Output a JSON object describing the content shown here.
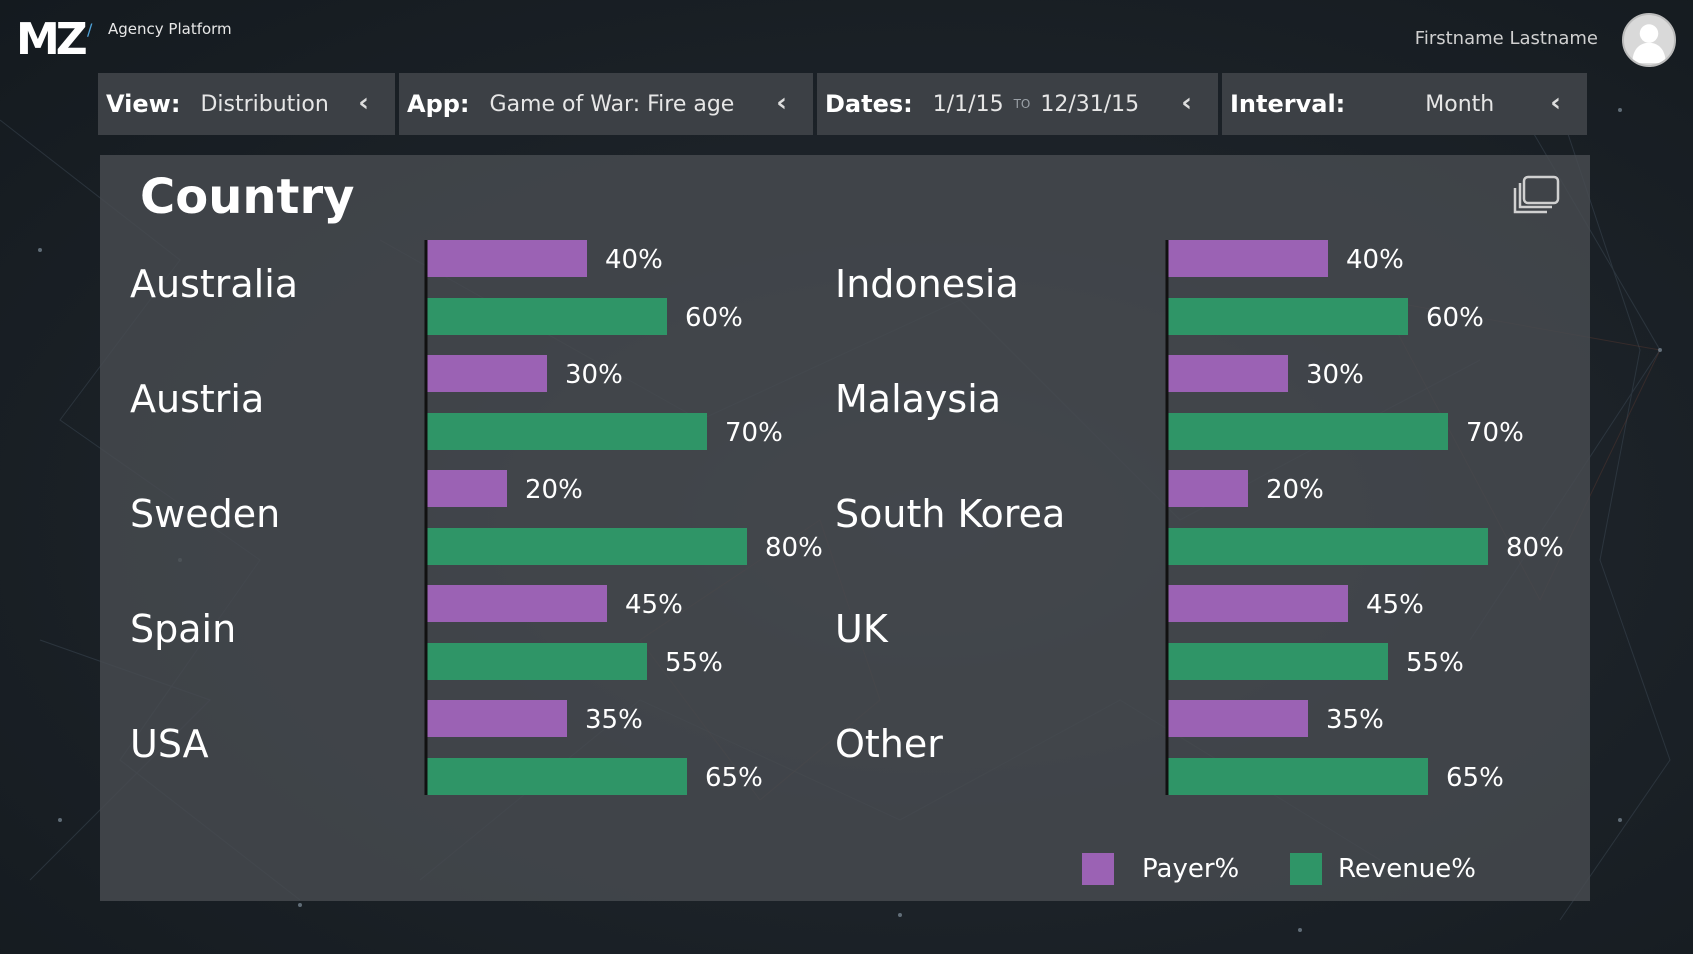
{
  "header": {
    "logo": "MZ",
    "separator": "/",
    "platform": "Agency Platform",
    "user_name": "Firstname Lastname",
    "avatar_icon": "user-avatar-icon"
  },
  "filters": {
    "view": {
      "label": "View:",
      "value": "Distribution"
    },
    "app": {
      "label": "App:",
      "value": "Game of War: Fire age"
    },
    "dates": {
      "label": "Dates:",
      "from": "1/1/15",
      "to_label": "TO",
      "to": "12/31/15"
    },
    "interval": {
      "label": "Interval:",
      "value": "Month"
    },
    "chevron_icon": "chevron-left-icon"
  },
  "panel": {
    "title": "Country",
    "expand_icon": "expand-window-icon"
  },
  "colors": {
    "payer": "#9b62b4",
    "revenue": "#2f9567",
    "axis": "#111111"
  },
  "chart_data": {
    "type": "bar",
    "orientation": "horizontal",
    "title": "Country",
    "xlim": [
      0,
      100
    ],
    "unit": "%",
    "legend": {
      "placement": "bottom-right",
      "entries": [
        "Payer%",
        "Revenue%"
      ]
    },
    "series_names": [
      "Payer%",
      "Revenue%"
    ],
    "groups": [
      {
        "categories": [
          "Australia",
          "Austria",
          "Sweden",
          "Spain",
          "USA"
        ],
        "series": [
          {
            "name": "Payer%",
            "values": [
              40,
              30,
              20,
              45,
              35
            ]
          },
          {
            "name": "Revenue%",
            "values": [
              60,
              70,
              80,
              55,
              65
            ]
          }
        ]
      },
      {
        "categories": [
          "Indonesia",
          "Malaysia",
          "South Korea",
          "UK",
          "Other"
        ],
        "series": [
          {
            "name": "Payer%",
            "values": [
              40,
              30,
              20,
              45,
              35
            ]
          },
          {
            "name": "Revenue%",
            "values": [
              60,
              70,
              80,
              55,
              65
            ]
          }
        ]
      }
    ]
  }
}
